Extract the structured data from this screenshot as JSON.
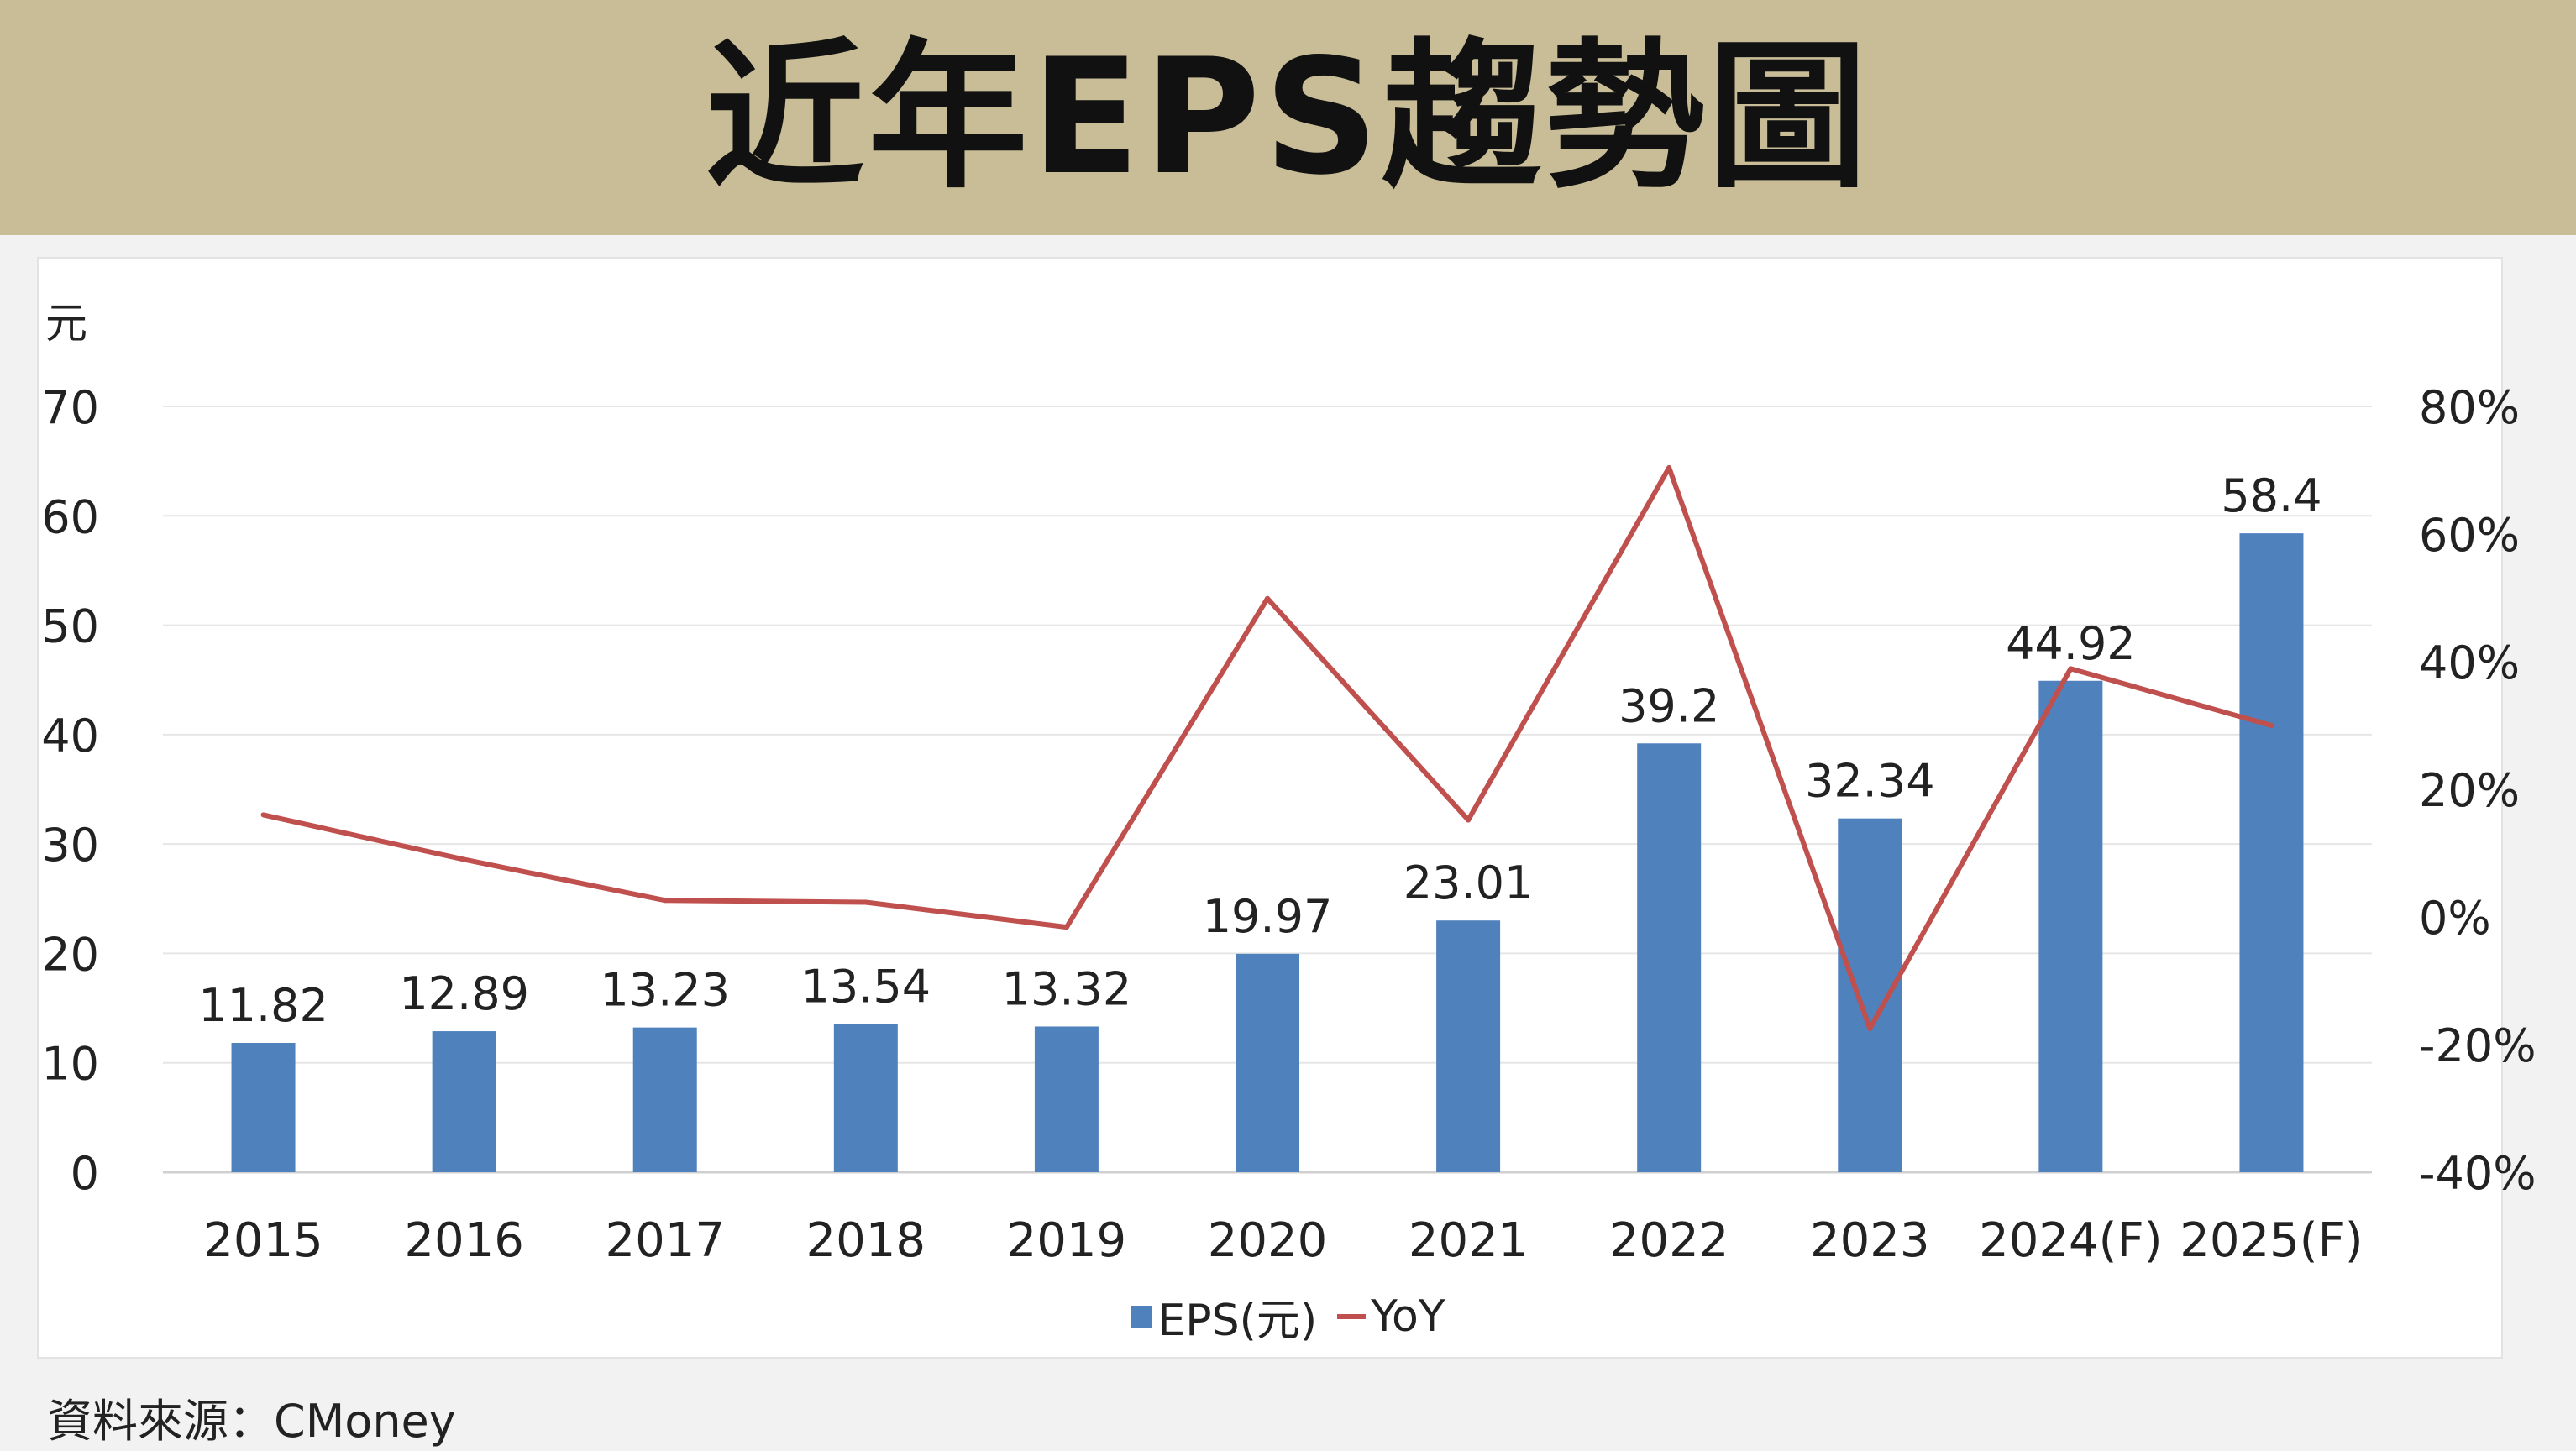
{
  "header": {
    "title": "近年EPS趨勢圖"
  },
  "source_label": "資料來源：CMoney",
  "legend": {
    "eps_label": "EPS(元)",
    "yoy_label": "YoY"
  },
  "colors": {
    "banner": "#c8bd97",
    "bar": "#4f81bd",
    "line": "#c0504d",
    "grid": "#e6e6e6"
  },
  "chart_data": {
    "type": "bar",
    "ylabel": "元",
    "categories": [
      "2015",
      "2016",
      "2017",
      "2018",
      "2019",
      "2020",
      "2021",
      "2022",
      "2023",
      "2024(F)",
      "2025(F)"
    ],
    "ylim": [
      0,
      70
    ],
    "y_ticks": [
      "0",
      "10",
      "20",
      "30",
      "40",
      "50",
      "60",
      "70"
    ],
    "y2lim": [
      -40,
      80
    ],
    "y2_ticks": [
      "-40%",
      "-20%",
      "0%",
      "20%",
      "40%",
      "60%",
      "80%"
    ],
    "grid": true,
    "legend_position": "bottom",
    "series": [
      {
        "name": "EPS(元)",
        "type": "bar",
        "axis": "left",
        "values": [
          11.82,
          12.89,
          13.23,
          13.54,
          13.32,
          19.97,
          23.01,
          39.2,
          32.34,
          44.92,
          58.4
        ],
        "data_labels": [
          "11.82",
          "12.89",
          "13.23",
          "13.54",
          "13.32",
          "19.97",
          "23.01",
          "39.2",
          "32.34",
          "44.92",
          "58.4"
        ]
      },
      {
        "name": "YoY",
        "type": "line",
        "axis": "right",
        "unit": "%",
        "values": [
          16,
          9,
          2.6,
          2.3,
          -1.6,
          49.9,
          15.2,
          70.4,
          -17.5,
          38.9,
          30
        ]
      }
    ]
  }
}
